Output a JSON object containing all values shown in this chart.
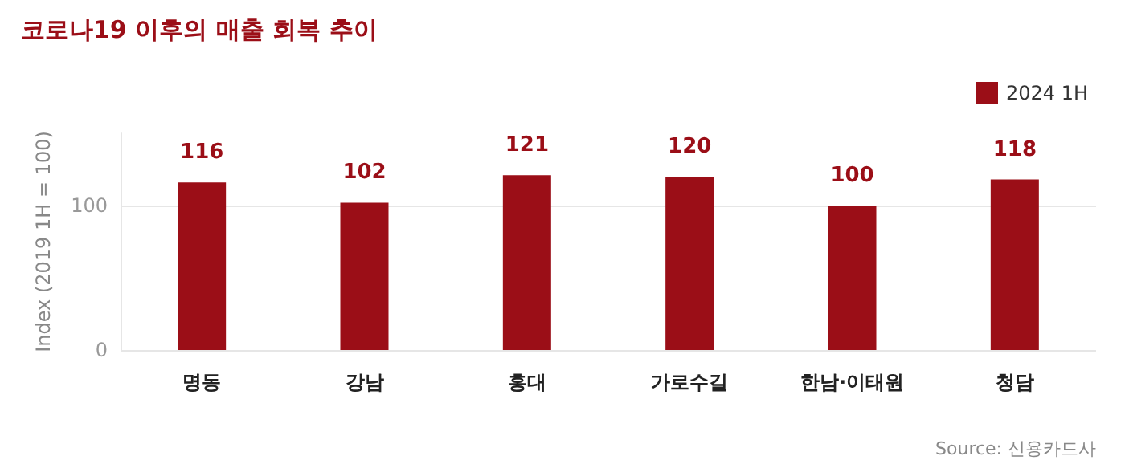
{
  "chart_data": {
    "type": "bar",
    "title": "코로나19 이후의 매출 회복 추이",
    "ylabel": "Index (2019 1H = 100)",
    "categories": [
      "명동",
      "강남",
      "홍대",
      "가로수길",
      "한남·이태원",
      "청담"
    ],
    "series": [
      {
        "name": "2024 1H",
        "color": "#9b0e17",
        "values": [
          116,
          102,
          121,
          120,
          100,
          118
        ]
      }
    ],
    "ylim": [
      0,
      150
    ],
    "yticks": [
      0,
      100
    ],
    "grid": "y",
    "legend": "top right",
    "data_labels": true,
    "annotations": [
      "Source: 신용카드사"
    ]
  }
}
